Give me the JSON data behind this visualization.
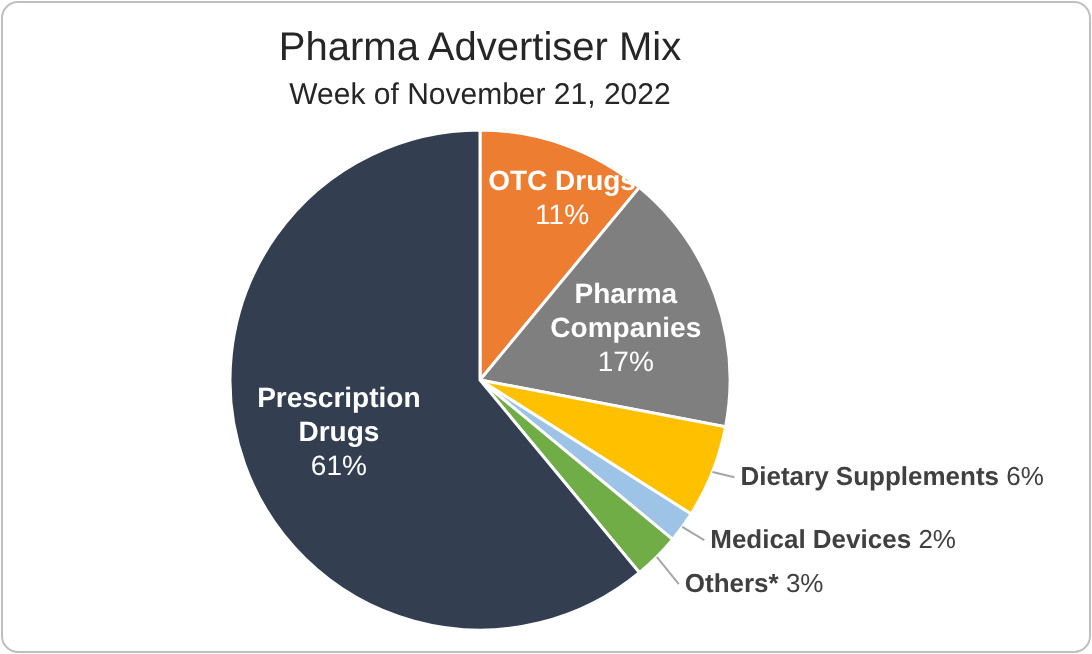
{
  "chart_data": {
    "type": "pie",
    "title": "Pharma Advertiser Mix",
    "subtitle": "Week of November 21, 2022",
    "categories": [
      "OTC Drugs",
      "Pharma Companies",
      "Dietary Supplements",
      "Medical Devices",
      "Others*",
      "Prescription Drugs"
    ],
    "values": [
      11,
      17,
      6,
      2,
      3,
      61
    ],
    "value_labels": [
      "11%",
      "17%",
      "6%",
      "2%",
      "3%",
      "61%"
    ],
    "colors": [
      "#ed7d31",
      "#7f7f7f",
      "#ffc000",
      "#9dc3e6",
      "#70ad47",
      "#333f50"
    ]
  }
}
